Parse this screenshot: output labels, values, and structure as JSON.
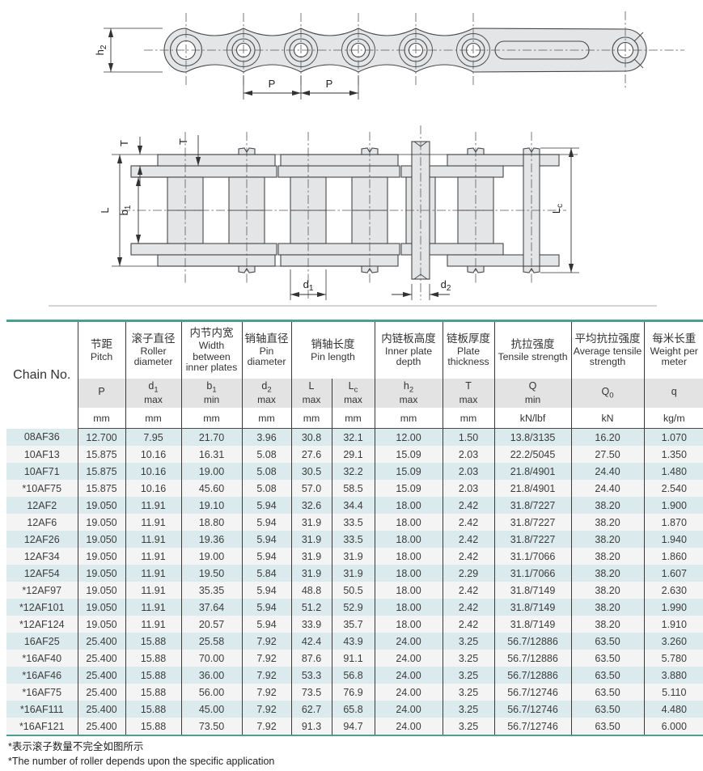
{
  "diagrams": {
    "side_view": {
      "h2": {
        "b": "h",
        "s": "2"
      },
      "p_left": "P",
      "p_right": "P"
    },
    "plan_view": {
      "t1": "T",
      "t2": "T",
      "l": "L",
      "b1": {
        "b": "b",
        "s": "1"
      },
      "lc": {
        "b": "L",
        "s": "c"
      },
      "d1": {
        "b": "d",
        "s": "1"
      },
      "d2": {
        "b": "d",
        "s": "2"
      }
    }
  },
  "table": {
    "header": {
      "chain_no": "Chain No.",
      "groups": [
        {
          "zh": "节距",
          "en": "Pitch",
          "span": 1
        },
        {
          "zh": "滚子直径",
          "en": "Roller diameter",
          "span": 1
        },
        {
          "zh": "内节内宽",
          "en": "Width between inner plates",
          "span": 1
        },
        {
          "zh": "销轴直径",
          "en": "Pin diameter",
          "span": 1
        },
        {
          "zh": "销轴长度",
          "en": "Pin length",
          "span": 2
        },
        {
          "zh": "内链板高度",
          "en": "Inner plate depth",
          "span": 1
        },
        {
          "zh": "链板厚度",
          "en": "Plate thickness",
          "span": 1
        },
        {
          "zh": "抗拉强度",
          "en": "Tensile strength",
          "span": 1
        },
        {
          "zh": "平均抗拉强度",
          "en": "Average tensile strength",
          "span": 1
        },
        {
          "zh": "每米长重",
          "en": "Weight per meter",
          "span": 1
        }
      ]
    },
    "symbols": [
      {
        "b": "P",
        "s": "",
        "l2": ""
      },
      {
        "b": "d",
        "s": "1",
        "l2": "max"
      },
      {
        "b": "b",
        "s": "1",
        "l2": "min"
      },
      {
        "b": "d",
        "s": "2",
        "l2": "max"
      },
      {
        "b": "L",
        "s": "",
        "l2": "max"
      },
      {
        "b": "L",
        "s": "c",
        "l2": "max"
      },
      {
        "b": "h",
        "s": "2",
        "l2": "max"
      },
      {
        "b": "T",
        "s": "",
        "l2": "max"
      },
      {
        "b": "Q",
        "s": "",
        "l2": "min"
      },
      {
        "b": "Q",
        "s": "0",
        "l2": ""
      },
      {
        "b": "q",
        "s": "",
        "l2": ""
      }
    ],
    "units": [
      "mm",
      "mm",
      "mm",
      "mm",
      "mm",
      "mm",
      "mm",
      "mm",
      "kN/lbf",
      "kN",
      "kg/m"
    ],
    "rows": [
      [
        "08AF36",
        "12.700",
        "7.95",
        "21.70",
        "3.96",
        "30.8",
        "32.1",
        "12.00",
        "1.50",
        "13.8/3135",
        "16.20",
        "1.070"
      ],
      [
        "10AF13",
        "15.875",
        "10.16",
        "16.31",
        "5.08",
        "27.6",
        "29.1",
        "15.09",
        "2.03",
        "22.2/5045",
        "27.50",
        "1.350"
      ],
      [
        "10AF71",
        "15.875",
        "10.16",
        "19.00",
        "5.08",
        "30.5",
        "32.2",
        "15.09",
        "2.03",
        "21.8/4901",
        "24.40",
        "1.480"
      ],
      [
        "*10AF75",
        "15.875",
        "10.16",
        "45.60",
        "5.08",
        "57.0",
        "58.5",
        "15.09",
        "2.03",
        "21.8/4901",
        "24.40",
        "2.540"
      ],
      [
        "12AF2",
        "19.050",
        "11.91",
        "19.10",
        "5.94",
        "32.6",
        "34.4",
        "18.00",
        "2.42",
        "31.8/7227",
        "38.20",
        "1.900"
      ],
      [
        "12AF6",
        "19.050",
        "11.91",
        "18.80",
        "5.94",
        "31.9",
        "33.5",
        "18.00",
        "2.42",
        "31.8/7227",
        "38.20",
        "1.870"
      ],
      [
        "12AF26",
        "19.050",
        "11.91",
        "19.36",
        "5.94",
        "31.9",
        "33.5",
        "18.00",
        "2.42",
        "31.8/7227",
        "38.20",
        "1.940"
      ],
      [
        "12AF34",
        "19.050",
        "11.91",
        "19.00",
        "5.94",
        "31.9",
        "31.9",
        "18.00",
        "2.42",
        "31.1/7066",
        "38.20",
        "1.860"
      ],
      [
        "12AF54",
        "19.050",
        "11.91",
        "19.50",
        "5.84",
        "31.9",
        "31.9",
        "18.00",
        "2.29",
        "31.1/7066",
        "38.20",
        "1.607"
      ],
      [
        "*12AF97",
        "19.050",
        "11.91",
        "35.35",
        "5.94",
        "48.8",
        "50.5",
        "18.00",
        "2.42",
        "31.8/7149",
        "38.20",
        "2.630"
      ],
      [
        "*12AF101",
        "19.050",
        "11.91",
        "37.64",
        "5.94",
        "51.2",
        "52.9",
        "18.00",
        "2.42",
        "31.8/7149",
        "38.20",
        "1.990"
      ],
      [
        "*12AF124",
        "19.050",
        "11.91",
        "20.57",
        "5.94",
        "33.9",
        "35.7",
        "18.00",
        "2.42",
        "31.8/7149",
        "38.20",
        "1.910"
      ],
      [
        "16AF25",
        "25.400",
        "15.88",
        "25.58",
        "7.92",
        "42.4",
        "43.9",
        "24.00",
        "3.25",
        "56.7/12886",
        "63.50",
        "3.260"
      ],
      [
        "*16AF40",
        "25.400",
        "15.88",
        "70.00",
        "7.92",
        "87.6",
        "91.1",
        "24.00",
        "3.25",
        "56.7/12886",
        "63.50",
        "5.780"
      ],
      [
        "*16AF46",
        "25.400",
        "15.88",
        "36.00",
        "7.92",
        "53.3",
        "56.8",
        "24.00",
        "3.25",
        "56.7/12886",
        "63.50",
        "3.880"
      ],
      [
        "*16AF75",
        "25.400",
        "15.88",
        "56.00",
        "7.92",
        "73.5",
        "76.9",
        "24.00",
        "3.25",
        "56.7/12746",
        "63.50",
        "5.110"
      ],
      [
        "*16AF111",
        "25.400",
        "15.88",
        "45.00",
        "7.92",
        "62.7",
        "65.8",
        "24.00",
        "3.25",
        "56.7/12746",
        "63.50",
        "4.480"
      ],
      [
        "*16AF121",
        "25.400",
        "15.88",
        "73.50",
        "7.92",
        "91.3",
        "94.7",
        "24.00",
        "3.25",
        "56.7/12746",
        "63.50",
        "6.000"
      ]
    ]
  },
  "notes": {
    "zh": "*表示滚子数量不完全如图所示",
    "en": "*The number of roller depends upon the specific application"
  }
}
